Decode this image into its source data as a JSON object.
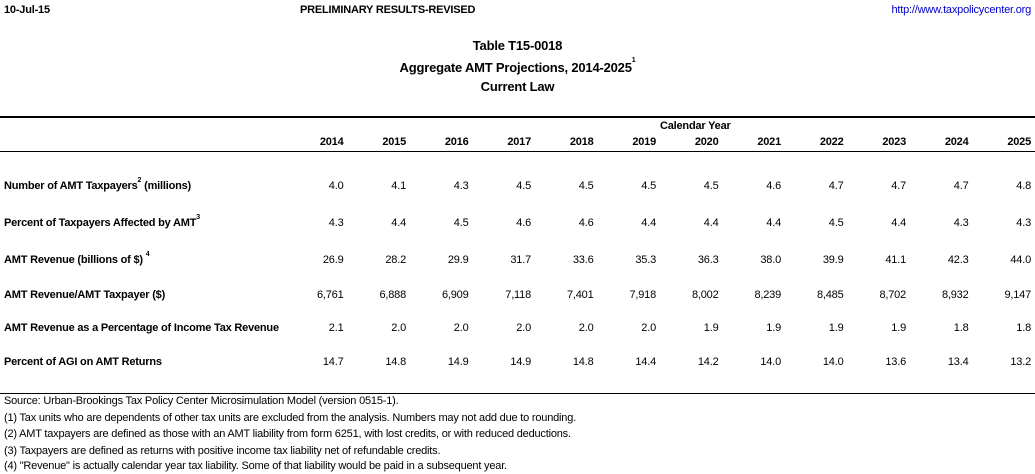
{
  "header": {
    "date": "10-Jul-15",
    "status": "PRELIMINARY RESULTS-REVISED",
    "url": "http://www.taxpolicycenter.org"
  },
  "title": {
    "table_id": "Table T15-0018",
    "subtitle": "Aggregate AMT Projections, 2014-2025",
    "subtitle_note": "1",
    "scenario": "Current Law"
  },
  "columns_group": "Calendar Year",
  "years": [
    "2014",
    "2015",
    "2016",
    "2017",
    "2018",
    "2019",
    "2020",
    "2021",
    "2022",
    "2023",
    "2024",
    "2025"
  ],
  "rows": [
    {
      "label": "Number of AMT Taxpayers",
      "note": "2",
      "suffix": " (millions)",
      "values": [
        "4.0",
        "4.1",
        "4.3",
        "4.5",
        "4.5",
        "4.5",
        "4.5",
        "4.6",
        "4.7",
        "4.7",
        "4.7",
        "4.8"
      ]
    },
    {
      "label": "Percent of Taxpayers Affected by AMT",
      "note": "3",
      "suffix": "",
      "values": [
        "4.3",
        "4.4",
        "4.5",
        "4.6",
        "4.6",
        "4.4",
        "4.4",
        "4.4",
        "4.5",
        "4.4",
        "4.3",
        "4.3"
      ]
    },
    {
      "label": "AMT Revenue (billions of $) ",
      "note": "4",
      "suffix": "",
      "values": [
        "26.9",
        "28.2",
        "29.9",
        "31.7",
        "33.6",
        "35.3",
        "36.3",
        "38.0",
        "39.9",
        "41.1",
        "42.3",
        "44.0"
      ]
    },
    {
      "label": "AMT Revenue/AMT Taxpayer ($)",
      "note": "",
      "suffix": "",
      "values": [
        "6,761",
        "6,888",
        "6,909",
        "7,118",
        "7,401",
        "7,918",
        "8,002",
        "8,239",
        "8,485",
        "8,702",
        "8,932",
        "9,147"
      ]
    },
    {
      "label": "AMT Revenue as a Percentage of Income Tax Revenue",
      "note": "",
      "suffix": "",
      "values": [
        "2.1",
        "2.0",
        "2.0",
        "2.0",
        "2.0",
        "2.0",
        "1.9",
        "1.9",
        "1.9",
        "1.9",
        "1.8",
        "1.8"
      ]
    },
    {
      "label": "Percent of AGI on AMT Returns",
      "note": "",
      "suffix": "",
      "values": [
        "14.7",
        "14.8",
        "14.9",
        "14.9",
        "14.8",
        "14.4",
        "14.2",
        "14.0",
        "14.0",
        "13.6",
        "13.4",
        "13.2"
      ]
    }
  ],
  "footnotes": [
    "Source: Urban-Brookings Tax Policy Center Microsimulation Model (version 0515-1).",
    "(1) Tax units who are dependents of other tax units are excluded from the analysis. Numbers may not add due to rounding.",
    "(2) AMT taxpayers are defined as those with an AMT liability from form 6251, with lost credits, or with reduced deductions.",
    "(3) Taxpayers are defined as returns with positive income tax liability net of refundable credits.",
    "(4) \"Revenue\" is actually calendar year tax liability.  Some of that liability would be paid in a subsequent year."
  ]
}
